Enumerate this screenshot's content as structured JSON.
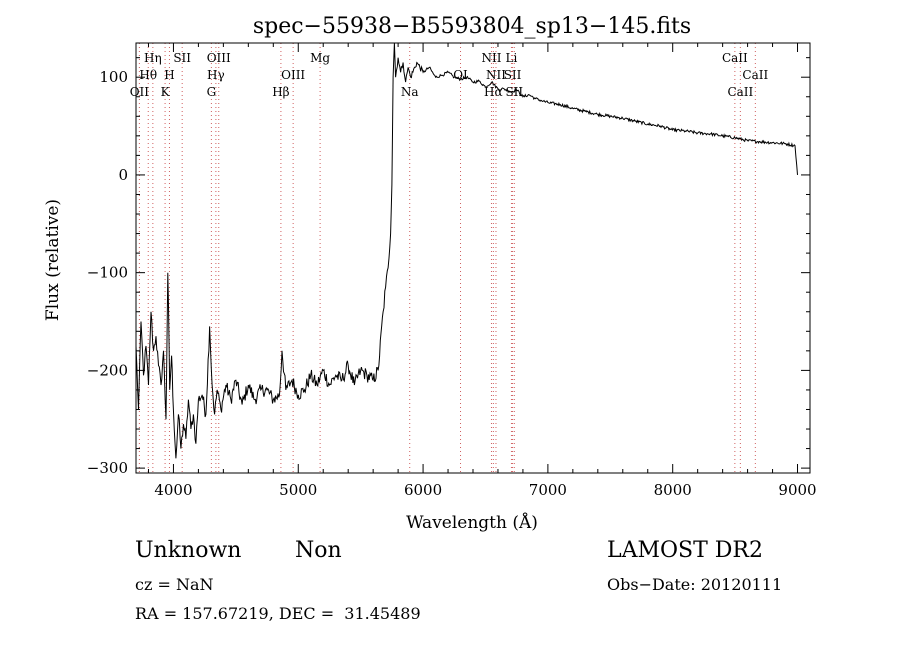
{
  "chart_data": {
    "type": "line",
    "title": "spec−55938−B5593804_sp13−145.fits",
    "xlabel": "Wavelength (Å)",
    "ylabel": "Flux (relative)",
    "xlim": [
      3700,
      9100
    ],
    "ylim": [
      -305,
      135
    ],
    "xticks": [
      4000,
      5000,
      6000,
      7000,
      8000,
      9000
    ],
    "xtick_labels": [
      "4000",
      "5000",
      "6000",
      "7000",
      "8000",
      "9000"
    ],
    "yticks": [
      -300,
      -200,
      -100,
      0,
      100
    ],
    "ytick_labels": [
      "−300",
      "−200",
      "−100",
      "0",
      "100"
    ],
    "series": [
      {
        "color": "#000000",
        "x": [
          3700,
          3720,
          3740,
          3760,
          3780,
          3800,
          3820,
          3840,
          3860,
          3880,
          3900,
          3920,
          3940,
          3955,
          3970,
          3985,
          4000,
          4020,
          4040,
          4060,
          4080,
          4100,
          4120,
          4140,
          4160,
          4180,
          4200,
          4230,
          4260,
          4290,
          4310,
          4330,
          4350,
          4380,
          4420,
          4460,
          4500,
          4550,
          4600,
          4650,
          4700,
          4750,
          4800,
          4850,
          4870,
          4900,
          4950,
          5000,
          5050,
          5100,
          5150,
          5200,
          5250,
          5300,
          5350,
          5400,
          5450,
          5500,
          5550,
          5600,
          5640,
          5680,
          5700,
          5720,
          5740,
          5750,
          5760,
          5770,
          5780,
          5800,
          5820,
          5840,
          5860,
          5880,
          5900,
          5950,
          6000,
          6050,
          6100,
          6150,
          6200,
          6250,
          6300,
          6350,
          6400,
          6450,
          6500,
          6550,
          6600,
          6650,
          6700,
          6750,
          6800,
          6850,
          6900,
          6950,
          7000,
          7100,
          7200,
          7300,
          7400,
          7500,
          7600,
          7700,
          7800,
          7900,
          8000,
          8100,
          8200,
          8300,
          8400,
          8500,
          8600,
          8700,
          8800,
          8900,
          8980,
          9000
        ],
        "y": [
          -175,
          -240,
          -150,
          -205,
          -175,
          -215,
          -140,
          -180,
          -165,
          -195,
          -215,
          -180,
          -250,
          -100,
          -220,
          -185,
          -240,
          -290,
          -245,
          -280,
          -255,
          -270,
          -230,
          -260,
          -245,
          -275,
          -230,
          -225,
          -245,
          -155,
          -215,
          -245,
          -220,
          -240,
          -215,
          -230,
          -210,
          -235,
          -215,
          -230,
          -220,
          -220,
          -230,
          -225,
          -180,
          -220,
          -210,
          -225,
          -220,
          -205,
          -215,
          -200,
          -215,
          -205,
          -210,
          -195,
          -215,
          -200,
          -205,
          -210,
          -200,
          -140,
          -115,
          -95,
          -60,
          -10,
          100,
          135,
          100,
          120,
          105,
          115,
          95,
          110,
          100,
          115,
          105,
          110,
          100,
          102,
          105,
          100,
          98,
          100,
          95,
          96,
          90,
          95,
          88,
          88,
          85,
          87,
          80,
          82,
          78,
          76,
          74,
          72,
          68,
          65,
          62,
          60,
          58,
          55,
          52,
          50,
          46,
          45,
          43,
          42,
          40,
          38,
          35,
          34,
          33,
          32,
          30,
          0
        ]
      }
    ],
    "lines": {
      "top": [
        {
          "label": "Hη",
          "x": 3835
        },
        {
          "label": "SII",
          "x": 4070
        },
        {
          "label": "OIII",
          "x": 4363
        },
        {
          "label": "Mg",
          "x": 5175
        },
        {
          "label": "NII",
          "x": 6548
        },
        {
          "label": "Li",
          "x": 6708
        },
        {
          "label": "CaII",
          "x": 8498
        }
      ],
      "middle": [
        {
          "label": "Hθ",
          "x": 3798
        },
        {
          "label": "H",
          "x": 3968
        },
        {
          "label": "Hγ",
          "x": 4340
        },
        {
          "label": "OIII",
          "x": 4959
        },
        {
          "label": "OI",
          "x": 6300
        },
        {
          "label": "NII",
          "x": 6584
        },
        {
          "label": "SII",
          "x": 6717
        },
        {
          "label": "CaII",
          "x": 8662
        }
      ],
      "bottom": [
        {
          "label": "OII",
          "x": 3727
        },
        {
          "label": "K",
          "x": 3933
        },
        {
          "label": "G",
          "x": 4304
        },
        {
          "label": "Hβ",
          "x": 4861
        },
        {
          "label": "Na",
          "x": 5893
        },
        {
          "label": "Hα",
          "x": 6563
        },
        {
          "label": "SII",
          "x": 6731
        },
        {
          "label": "CaII",
          "x": 8542
        }
      ],
      "line_color": "#d06060"
    }
  },
  "info": {
    "object_class": "Unknown",
    "object_subclass": "Non",
    "cz": "cz = NaN",
    "ra_dec": "RA = 157.67219, DEC =  31.45489",
    "survey": "LAMOST DR2",
    "obs_date": "Obs−Date: 20120111"
  }
}
